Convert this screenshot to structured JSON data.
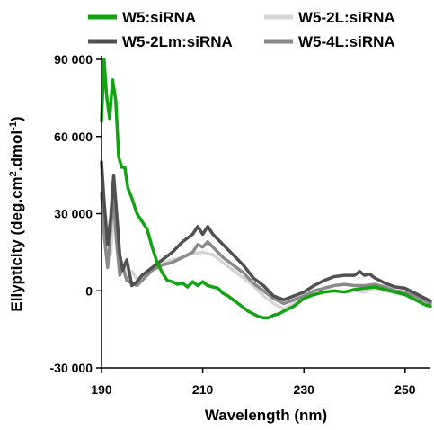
{
  "chart_data": {
    "type": "line",
    "title": "",
    "xlabel": "Wavelength (nm)",
    "ylabel_parts": [
      "Ellypticity (deg.cm",
      "2",
      ".dmol",
      "-1",
      ")"
    ],
    "xlim": [
      190,
      255
    ],
    "ylim": [
      -30000,
      90000
    ],
    "xticks": [
      190,
      210,
      230,
      250
    ],
    "xtick_labels": [
      "190",
      "210",
      "230",
      "250"
    ],
    "yticks": [
      -30000,
      0,
      30000,
      60000,
      90000
    ],
    "ytick_labels": [
      "-30 000",
      "0",
      "30 000",
      "60 000",
      "90 000"
    ],
    "grid": false,
    "legend_position": "top",
    "series": [
      {
        "name": "W5:siRNA",
        "color": "#12a312",
        "width": 3.5,
        "points": [
          [
            190,
            66000
          ],
          [
            190.5,
            90000
          ],
          [
            191,
            76000
          ],
          [
            191.6,
            67000
          ],
          [
            192.2,
            82000
          ],
          [
            192.8,
            74000
          ],
          [
            193.4,
            52000
          ],
          [
            194,
            48000
          ],
          [
            194.6,
            48000
          ],
          [
            195.2,
            40000
          ],
          [
            196,
            36000
          ],
          [
            197,
            30000
          ],
          [
            198,
            27000
          ],
          [
            199,
            24000
          ],
          [
            200,
            17000
          ],
          [
            201,
            11000
          ],
          [
            202,
            7000
          ],
          [
            203,
            4000
          ],
          [
            204,
            3500
          ],
          [
            205,
            2500
          ],
          [
            206,
            3000
          ],
          [
            207,
            1500
          ],
          [
            208,
            3500
          ],
          [
            209,
            2000
          ],
          [
            210,
            3500
          ],
          [
            211,
            2000
          ],
          [
            212,
            1500
          ],
          [
            213,
            1000
          ],
          [
            214,
            -1000
          ],
          [
            215,
            -2000
          ],
          [
            216,
            -3500
          ],
          [
            217,
            -5000
          ],
          [
            218,
            -6500
          ],
          [
            219,
            -8000
          ],
          [
            220,
            -9000
          ],
          [
            221,
            -10000
          ],
          [
            222,
            -10500
          ],
          [
            223,
            -10500
          ],
          [
            224,
            -9500
          ],
          [
            225,
            -9000
          ],
          [
            226,
            -8000
          ],
          [
            227,
            -7000
          ],
          [
            228,
            -6000
          ],
          [
            229,
            -4500
          ],
          [
            230,
            -3000
          ],
          [
            232,
            -1500
          ],
          [
            234,
            -500
          ],
          [
            236,
            0
          ],
          [
            238,
            -500
          ],
          [
            240,
            500
          ],
          [
            242,
            1000
          ],
          [
            244,
            1500
          ],
          [
            246,
            500
          ],
          [
            248,
            -500
          ],
          [
            250,
            -1500
          ],
          [
            252,
            -3500
          ],
          [
            254,
            -5500
          ],
          [
            255,
            -6000
          ]
        ]
      },
      {
        "name": "W5-2L:siRNA",
        "color": "#d6d6d6",
        "width": 3.5,
        "points": [
          [
            190,
            46000
          ],
          [
            190.6,
            33000
          ],
          [
            191.2,
            22000
          ],
          [
            191.8,
            14000
          ],
          [
            192.4,
            30000
          ],
          [
            193,
            19000
          ],
          [
            193.6,
            9000
          ],
          [
            194.2,
            11000
          ],
          [
            195,
            7000
          ],
          [
            196,
            7500
          ],
          [
            197,
            4500
          ],
          [
            198,
            5500
          ],
          [
            199,
            6000
          ],
          [
            200,
            9000
          ],
          [
            202,
            11000
          ],
          [
            204,
            12000
          ],
          [
            206,
            13000
          ],
          [
            208,
            14500
          ],
          [
            210,
            15000
          ],
          [
            212,
            14000
          ],
          [
            214,
            11000
          ],
          [
            216,
            8000
          ],
          [
            218,
            5000
          ],
          [
            220,
            2000
          ],
          [
            222,
            -2000
          ],
          [
            224,
            -5000
          ],
          [
            226,
            -7000
          ],
          [
            228,
            -5000
          ],
          [
            230,
            -2000
          ],
          [
            232,
            -1500
          ],
          [
            234,
            -500
          ],
          [
            236,
            0
          ],
          [
            238,
            -500
          ],
          [
            240,
            0
          ],
          [
            242,
            -500
          ],
          [
            244,
            1000
          ],
          [
            246,
            0
          ],
          [
            248,
            -1000
          ],
          [
            250,
            -1500
          ],
          [
            252,
            -3000
          ],
          [
            254,
            -4000
          ],
          [
            255,
            -4500
          ]
        ]
      },
      {
        "name": "W5-2Lm:siRNA",
        "color": "#505050",
        "width": 3.5,
        "points": [
          [
            190,
            50000
          ],
          [
            190.6,
            32000
          ],
          [
            191.2,
            18000
          ],
          [
            191.8,
            28000
          ],
          [
            192.4,
            45000
          ],
          [
            193,
            30000
          ],
          [
            193.6,
            14000
          ],
          [
            194.2,
            8000
          ],
          [
            195,
            12000
          ],
          [
            196,
            2000
          ],
          [
            197,
            3500
          ],
          [
            198,
            6000
          ],
          [
            199,
            7500
          ],
          [
            200,
            9000
          ],
          [
            202,
            12000
          ],
          [
            204,
            15000
          ],
          [
            206,
            19000
          ],
          [
            208,
            22000
          ],
          [
            209,
            25000
          ],
          [
            210,
            22000
          ],
          [
            211,
            25000
          ],
          [
            212,
            22000
          ],
          [
            214,
            18000
          ],
          [
            216,
            14000
          ],
          [
            218,
            10000
          ],
          [
            220,
            5000
          ],
          [
            222,
            2000
          ],
          [
            224,
            -2000
          ],
          [
            226,
            -3500
          ],
          [
            228,
            -2000
          ],
          [
            230,
            -500
          ],
          [
            232,
            2000
          ],
          [
            234,
            4000
          ],
          [
            236,
            5500
          ],
          [
            238,
            6000
          ],
          [
            240,
            6000
          ],
          [
            241,
            7500
          ],
          [
            242,
            6000
          ],
          [
            243,
            6500
          ],
          [
            244,
            5000
          ],
          [
            246,
            3000
          ],
          [
            248,
            1500
          ],
          [
            250,
            1000
          ],
          [
            252,
            -1000
          ],
          [
            254,
            -3000
          ],
          [
            255,
            -4000
          ]
        ]
      },
      {
        "name": "W5-4L:siRNA",
        "color": "#8a8a8a",
        "width": 3.5,
        "points": [
          [
            190,
            38000
          ],
          [
            190.6,
            20000
          ],
          [
            191.2,
            9000
          ],
          [
            191.8,
            24000
          ],
          [
            192.4,
            36000
          ],
          [
            193,
            18000
          ],
          [
            193.6,
            6000
          ],
          [
            194.2,
            9000
          ],
          [
            195,
            4000
          ],
          [
            196,
            3000
          ],
          [
            197,
            2000
          ],
          [
            198,
            4000
          ],
          [
            199,
            6000
          ],
          [
            200,
            8000
          ],
          [
            202,
            10000
          ],
          [
            204,
            11000
          ],
          [
            206,
            13000
          ],
          [
            208,
            15000
          ],
          [
            209,
            18000
          ],
          [
            210,
            17000
          ],
          [
            211,
            19000
          ],
          [
            212,
            17000
          ],
          [
            214,
            13000
          ],
          [
            216,
            10000
          ],
          [
            218,
            7000
          ],
          [
            220,
            3000
          ],
          [
            222,
            0
          ],
          [
            224,
            -3000
          ],
          [
            226,
            -5000
          ],
          [
            228,
            -3500
          ],
          [
            230,
            -2000
          ],
          [
            232,
            0
          ],
          [
            234,
            1000
          ],
          [
            236,
            2000
          ],
          [
            238,
            2500
          ],
          [
            240,
            2000
          ],
          [
            242,
            2000
          ],
          [
            244,
            2500
          ],
          [
            246,
            1500
          ],
          [
            248,
            0
          ],
          [
            250,
            -500
          ],
          [
            252,
            -2000
          ],
          [
            254,
            -4000
          ],
          [
            255,
            -5000
          ]
        ]
      }
    ]
  }
}
